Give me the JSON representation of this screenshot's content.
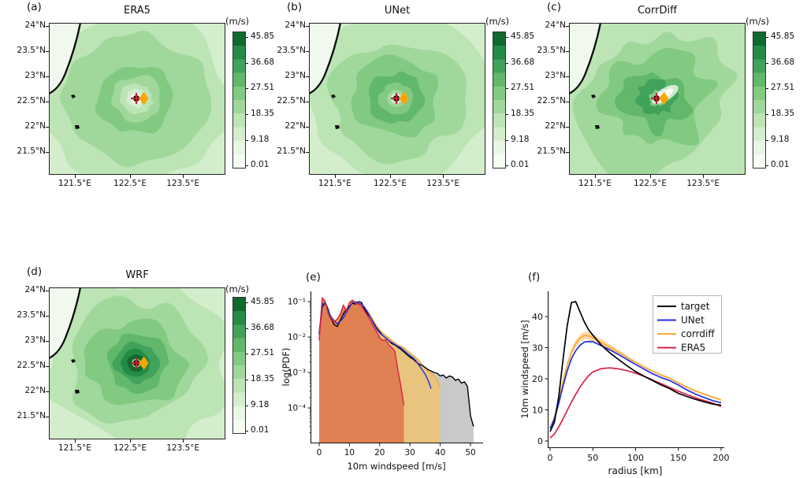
{
  "figure": {
    "background": "#ffffff",
    "description": "Six-panel tropical cyclone 10 m wind speed comparison figure"
  },
  "greens_palette": [
    "#f7fcf5",
    "#e9f6e5",
    "#d4edcd",
    "#bce4b5",
    "#a0d89b",
    "#82ca81",
    "#62b86a",
    "#41a25b",
    "#238b45",
    "#10692f"
  ],
  "marker_colors": {
    "center_dot": "#101010",
    "center_cross": "#c22333",
    "diamond": "#ffa500"
  },
  "chart_data": [
    {
      "id": "a",
      "type": "heatmap",
      "panel_label": "(a)",
      "title": "ERA5",
      "x_ticks": [
        "121.5°E",
        "122.5°E",
        "123.5°E"
      ],
      "y_ticks": [
        "24°N",
        "23.5°N",
        "23°N",
        "22.5°N",
        "22°N",
        "21.5°N"
      ],
      "colorbar": {
        "label": "(m/s)",
        "ticks": [
          "45.85",
          "36.68",
          "27.51",
          "18.35",
          "9.18",
          "0.01"
        ],
        "colormap": "Greens"
      },
      "field_style": "smooth",
      "field_description": "Smooth moderate cyclone wind field with light eye near 122.6°E, 22.6°N; coastline at upper left; two small islands",
      "markers": [
        {
          "name": "observed-center",
          "shape": "black dot with crimson cross",
          "color": "#101010"
        },
        {
          "name": "estimated-center",
          "shape": "orange diamond",
          "color": "#ffa500"
        }
      ]
    },
    {
      "id": "b",
      "type": "heatmap",
      "panel_label": "(b)",
      "title": "UNet",
      "x_ticks": [
        "121.5°E",
        "122.5°E",
        "123.5°E"
      ],
      "y_ticks": [
        "24°N",
        "23.5°N",
        "23°N",
        "22.5°N",
        "22°N",
        "21.5°N"
      ],
      "colorbar": {
        "label": "(m/s)",
        "ticks": [
          "45.85",
          "36.68",
          "27.51",
          "18.35",
          "9.18",
          "0.01"
        ],
        "colormap": "Greens"
      },
      "field_style": "smooth-strong",
      "field_description": "Smooth cyclone wind field with stronger inner core and small white eye spot",
      "markers": [
        {
          "name": "observed-center",
          "shape": "black dot with crimson cross",
          "color": "#101010"
        },
        {
          "name": "estimated-center",
          "shape": "orange diamond",
          "color": "#ffa500"
        }
      ]
    },
    {
      "id": "c",
      "type": "heatmap",
      "panel_label": "(c)",
      "title": "CorrDiff",
      "x_ticks": [
        "121.5°E",
        "122.5°E",
        "123.5°E"
      ],
      "y_ticks": [
        "24°N",
        "23.5°N",
        "23°N",
        "22.5°N",
        "22°N",
        "21.5°N"
      ],
      "colorbar": {
        "label": "(m/s)",
        "ticks": [
          "45.85",
          "36.68",
          "27.51",
          "18.35",
          "9.18",
          "0.01"
        ],
        "colormap": "Greens"
      },
      "field_style": "noisy",
      "field_description": "Fine-scale noisy cyclone wind field with white streak northeast of the eye",
      "markers": [
        {
          "name": "observed-center",
          "shape": "black dot with crimson cross",
          "color": "#101010"
        },
        {
          "name": "estimated-center",
          "shape": "orange diamond",
          "color": "#ffa500"
        }
      ]
    },
    {
      "id": "d",
      "type": "heatmap",
      "panel_label": "(d)",
      "title": "WRF",
      "x_ticks": [
        "121.5°E",
        "122.5°E",
        "123.5°E"
      ],
      "y_ticks": [
        "24°N",
        "23.5°N",
        "23°N",
        "22.5°N",
        "22°N",
        "21.5°N"
      ],
      "colorbar": {
        "label": "(m/s)",
        "ticks": [
          "45.85",
          "36.68",
          "27.51",
          "18.35",
          "9.18",
          "0.01"
        ],
        "colormap": "Greens"
      },
      "field_style": "intense",
      "field_description": "Intense cyclone with dark high-wind eyewall ring and clear white eye",
      "markers": [
        {
          "name": "observed-center",
          "shape": "black dot with crimson cross",
          "color": "#101010"
        },
        {
          "name": "estimated-center",
          "shape": "orange diamond",
          "color": "#ffa500"
        }
      ]
    },
    {
      "id": "e",
      "type": "line",
      "panel_label": "(e)",
      "xlabel": "10m windspeed [m/s]",
      "ylabel": "log(PDF)",
      "x_ticks": [
        0,
        10,
        20,
        30,
        40,
        50
      ],
      "y_ticks": [
        "10⁻¹",
        "10⁻²",
        "10⁻³",
        "10⁻⁴"
      ],
      "y_tick_values": [
        0.1,
        0.01,
        0.001,
        0.0001
      ],
      "yscale": "log",
      "xlim": [
        -3,
        54
      ],
      "ylim": [
        1e-05,
        0.2
      ],
      "series": [
        {
          "name": "target",
          "color": "#000000",
          "fill": "#c9c9c9",
          "x_start": 0,
          "x_step": 1,
          "y": [
            0.012,
            0.07,
            0.095,
            0.06,
            0.032,
            0.022,
            0.02,
            0.03,
            0.045,
            0.06,
            0.075,
            0.09,
            0.085,
            0.1,
            0.095,
            0.06,
            0.045,
            0.035,
            0.025,
            0.018,
            0.014,
            0.011,
            0.0095,
            0.008,
            0.0065,
            0.006,
            0.0052,
            0.0045,
            0.0038,
            0.0032,
            0.0027,
            0.0024,
            0.002,
            0.0017,
            0.0016,
            0.0014,
            0.0012,
            0.0011,
            0.001,
            0.00095,
            0.0008,
            0.00085,
            0.0007,
            0.0008,
            0.00075,
            0.0006,
            0.00065,
            0.0005,
            0.00055,
            0.0004,
            6e-05,
            3e-05
          ]
        },
        {
          "name": "corrdiff",
          "color": "#f9a63a",
          "fill": "#e8c47e",
          "x_start": 0,
          "x_step": 1,
          "y": [
            0.012,
            0.08,
            0.085,
            0.055,
            0.038,
            0.03,
            0.028,
            0.035,
            0.045,
            0.06,
            0.08,
            0.09,
            0.095,
            0.085,
            0.08,
            0.065,
            0.055,
            0.04,
            0.028,
            0.02,
            0.016,
            0.013,
            0.011,
            0.0095,
            0.008,
            0.007,
            0.006,
            0.0055,
            0.005,
            0.0042,
            0.0036,
            0.003,
            0.0026,
            0.0022,
            0.0016,
            0.0013,
            0.0011,
            0.00095,
            0.0008,
            0.0006,
            0.0004
          ]
        },
        {
          "name": "UNet",
          "color": "#2030dd",
          "fill": null,
          "x_start": 0,
          "x_step": 1,
          "y": [
            0.013,
            0.085,
            0.09,
            0.055,
            0.035,
            0.028,
            0.024,
            0.028,
            0.035,
            0.05,
            0.07,
            0.095,
            0.1,
            0.09,
            0.085,
            0.07,
            0.05,
            0.035,
            0.024,
            0.017,
            0.013,
            0.011,
            0.0095,
            0.008,
            0.007,
            0.0062,
            0.0055,
            0.005,
            0.0042,
            0.0035,
            0.003,
            0.0026,
            0.0021,
            0.0016,
            0.0012,
            0.0009,
            0.0006,
            0.00035
          ]
        },
        {
          "name": "ERA5",
          "color": "#dc2048",
          "fill": "#df8152",
          "x_start": 0,
          "x_step": 1,
          "y": [
            0.008,
            0.13,
            0.1,
            0.045,
            0.03,
            0.028,
            0.032,
            0.045,
            0.08,
            0.055,
            0.095,
            0.11,
            0.09,
            0.085,
            0.075,
            0.055,
            0.04,
            0.028,
            0.02,
            0.014,
            0.0095,
            0.008,
            0.0085,
            0.006,
            0.005,
            0.004,
            0.0012,
            0.0004,
            0.00012
          ]
        }
      ]
    },
    {
      "id": "f",
      "type": "line",
      "panel_label": "(f)",
      "xlabel": "radius [km]",
      "ylabel": "10m windspeed [m/s]",
      "x_ticks": [
        0,
        50,
        100,
        150,
        200
      ],
      "y_ticks": [
        0,
        10,
        20,
        30,
        40
      ],
      "xlim": [
        0,
        200
      ],
      "ylim": [
        0,
        47
      ],
      "legend": {
        "position": "upper right",
        "entries": [
          "target",
          "UNet",
          "corrdiff",
          "ERA5"
        ]
      },
      "x": [
        0,
        5,
        10,
        15,
        20,
        25,
        30,
        35,
        40,
        45,
        50,
        60,
        70,
        80,
        90,
        100,
        110,
        120,
        130,
        140,
        150,
        160,
        170,
        180,
        190,
        200
      ],
      "series": [
        {
          "name": "target",
          "color": "#000000",
          "y": [
            3,
            6,
            14,
            26,
            37,
            44.5,
            44.8,
            41.5,
            38.3,
            35.8,
            34,
            30.8,
            28.3,
            26.2,
            24.2,
            22.3,
            20.8,
            19.4,
            18,
            16.8,
            15.3,
            14.3,
            13.4,
            12.6,
            11.9,
            11.5
          ]
        },
        {
          "name": "UNet",
          "color": "#2030dd",
          "y": [
            4,
            7,
            12,
            17.5,
            22.5,
            26.5,
            29,
            30.8,
            31.8,
            32,
            31.9,
            30.6,
            29.3,
            27.8,
            26.2,
            24.6,
            23.1,
            21.6,
            20.4,
            19.4,
            18,
            16.4,
            15.1,
            14,
            13,
            12.3
          ]
        },
        {
          "name": "corrdiff",
          "color": "#f9a63a",
          "band_color": "#ffd9a3",
          "y": [
            4,
            7.5,
            13,
            19,
            24.5,
            28.5,
            31.3,
            33,
            33.9,
            33.8,
            33.2,
            31.6,
            30.1,
            28.5,
            26.9,
            25.3,
            23.8,
            22.4,
            21.2,
            20.1,
            18.7,
            17.3,
            16.1,
            15.1,
            14.1,
            13.2
          ]
        },
        {
          "name": "ERA5",
          "color": "#dc2048",
          "y": [
            1,
            2.2,
            4.5,
            7,
            9.8,
            12.5,
            15,
            17.3,
            19.3,
            21,
            22.2,
            23.3,
            23.5,
            23.2,
            22.6,
            21.8,
            20.8,
            19.6,
            18.4,
            17.2,
            16,
            14.9,
            13.9,
            13,
            12.2,
            11.1
          ]
        }
      ]
    }
  ]
}
